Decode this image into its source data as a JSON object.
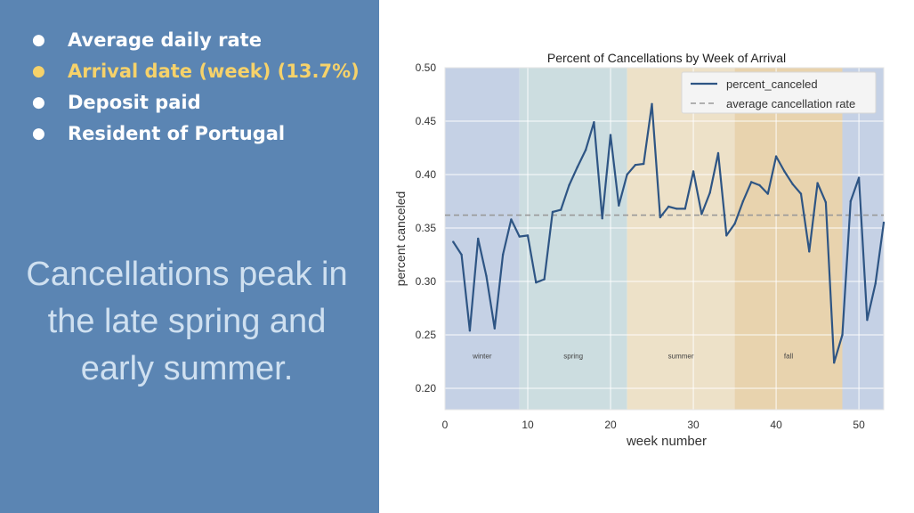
{
  "bullets": [
    {
      "text": "Average daily rate",
      "highlight": false
    },
    {
      "text": "Arrival date (week) (13.7%)",
      "highlight": true
    },
    {
      "text": "Deposit paid",
      "highlight": false
    },
    {
      "text": "Resident of Portugal",
      "highlight": false
    }
  ],
  "headline": "Cancellations peak in the late spring and early summer.",
  "colors": {
    "panel": "#5b85b3",
    "highlight": "#f6d26a",
    "line": "#2e5584",
    "avg_line": "#999999"
  },
  "chart_data": {
    "type": "line",
    "title": "Percent of Cancellations by Week of Arrival",
    "xlabel": "week number",
    "ylabel": "percent canceled",
    "xlim": [
      0,
      53
    ],
    "ylim": [
      0.18,
      0.5
    ],
    "xticks": [
      0,
      10,
      20,
      30,
      40,
      50
    ],
    "yticks": [
      "0.20",
      "0.25",
      "0.30",
      "0.35",
      "0.40",
      "0.45",
      "0.50"
    ],
    "grid": true,
    "legend_position": "top-right",
    "legend": [
      "percent_canceled",
      "average cancellation rate"
    ],
    "average_rate": 0.362,
    "seasons": [
      {
        "name": "winter",
        "start": 0,
        "end": 9,
        "color": "#c5d1e5"
      },
      {
        "name": "spring",
        "start": 9,
        "end": 22,
        "color": "#ccdde0"
      },
      {
        "name": "summer",
        "start": 22,
        "end": 35,
        "color": "#ede1c8"
      },
      {
        "name": "fall",
        "start": 35,
        "end": 48,
        "color": "#e8d3ae"
      },
      {
        "name": "",
        "start": 48,
        "end": 53,
        "color": "#c5d1e5"
      }
    ],
    "series": [
      {
        "name": "percent_canceled",
        "x": [
          1,
          2,
          3,
          4,
          5,
          6,
          7,
          8,
          9,
          10,
          11,
          12,
          13,
          14,
          15,
          16,
          17,
          18,
          19,
          20,
          21,
          22,
          23,
          24,
          25,
          26,
          27,
          28,
          29,
          30,
          31,
          32,
          33,
          34,
          35,
          36,
          37,
          38,
          39,
          40,
          41,
          42,
          43,
          44,
          45,
          46,
          47,
          48,
          49,
          50,
          51,
          52,
          53
        ],
        "y": [
          0.337,
          0.325,
          0.254,
          0.34,
          0.305,
          0.256,
          0.325,
          0.358,
          0.342,
          0.343,
          0.299,
          0.302,
          0.365,
          0.367,
          0.39,
          0.407,
          0.423,
          0.449,
          0.359,
          0.437,
          0.371,
          0.4,
          0.409,
          0.41,
          0.466,
          0.36,
          0.37,
          0.368,
          0.368,
          0.403,
          0.363,
          0.383,
          0.42,
          0.343,
          0.354,
          0.375,
          0.393,
          0.39,
          0.382,
          0.417,
          0.403,
          0.391,
          0.382,
          0.328,
          0.392,
          0.374,
          0.224,
          0.25,
          0.375,
          0.397,
          0.264,
          0.298,
          0.355
        ]
      }
    ]
  }
}
